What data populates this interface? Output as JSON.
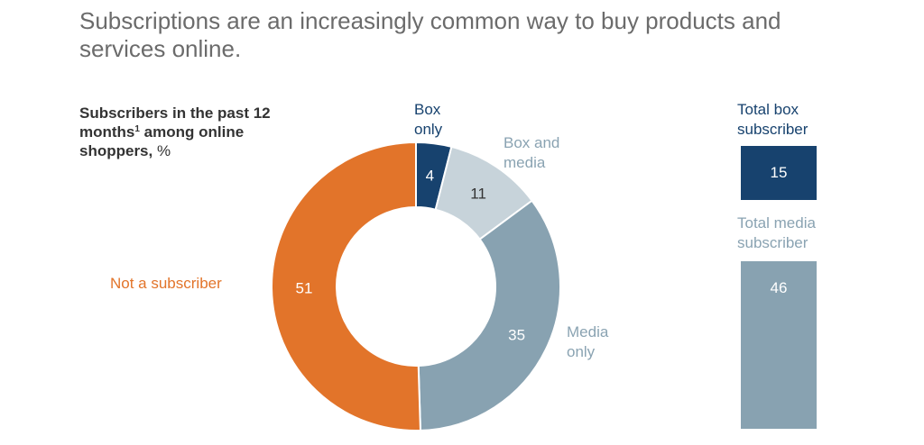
{
  "headline": "Subscriptions are an increasingly common way to buy products and services online.",
  "subtitle": {
    "main": "Subscribers in the past 12 months",
    "footnote_marker": "1",
    "rest": " among online shoppers,",
    "unit": " %"
  },
  "labels": {
    "box_line1": "Box",
    "box_line2": "only",
    "boxmedia_line1": "Box and",
    "boxmedia_line2": "media",
    "media_line1": "Media",
    "media_line2": "only",
    "not_subscriber": "Not a subscriber",
    "total_box_line1": "Total box",
    "total_box_line2": "subscriber",
    "total_media_line1": "Total media",
    "total_media_line2": "subscriber"
  },
  "totals": {
    "box": "15",
    "media": "46"
  },
  "colors": {
    "box": "#17426e",
    "box_and_media": "#c7d3da",
    "media": "#88a2b1",
    "not_subscriber": "#e2742a",
    "headline": "#6b6b6b"
  },
  "chart_data": {
    "type": "pie",
    "donut": true,
    "unit": "%",
    "slices": [
      {
        "name": "Box only",
        "value": 4,
        "color": "#17426e",
        "label_color": "#ffffff"
      },
      {
        "name": "Box and media",
        "value": 11,
        "color": "#c7d3da",
        "label_color": "#333333"
      },
      {
        "name": "Media only",
        "value": 35,
        "color": "#88a2b1",
        "label_color": "#ffffff"
      },
      {
        "name": "Not a subscriber",
        "value": 51,
        "color": "#e2742a",
        "label_color": "#ffffff"
      }
    ],
    "totals": [
      {
        "name": "Total box subscriber",
        "value": 15,
        "color": "#17426e"
      },
      {
        "name": "Total media subscriber",
        "value": 46,
        "color": "#88a2b1"
      }
    ]
  }
}
